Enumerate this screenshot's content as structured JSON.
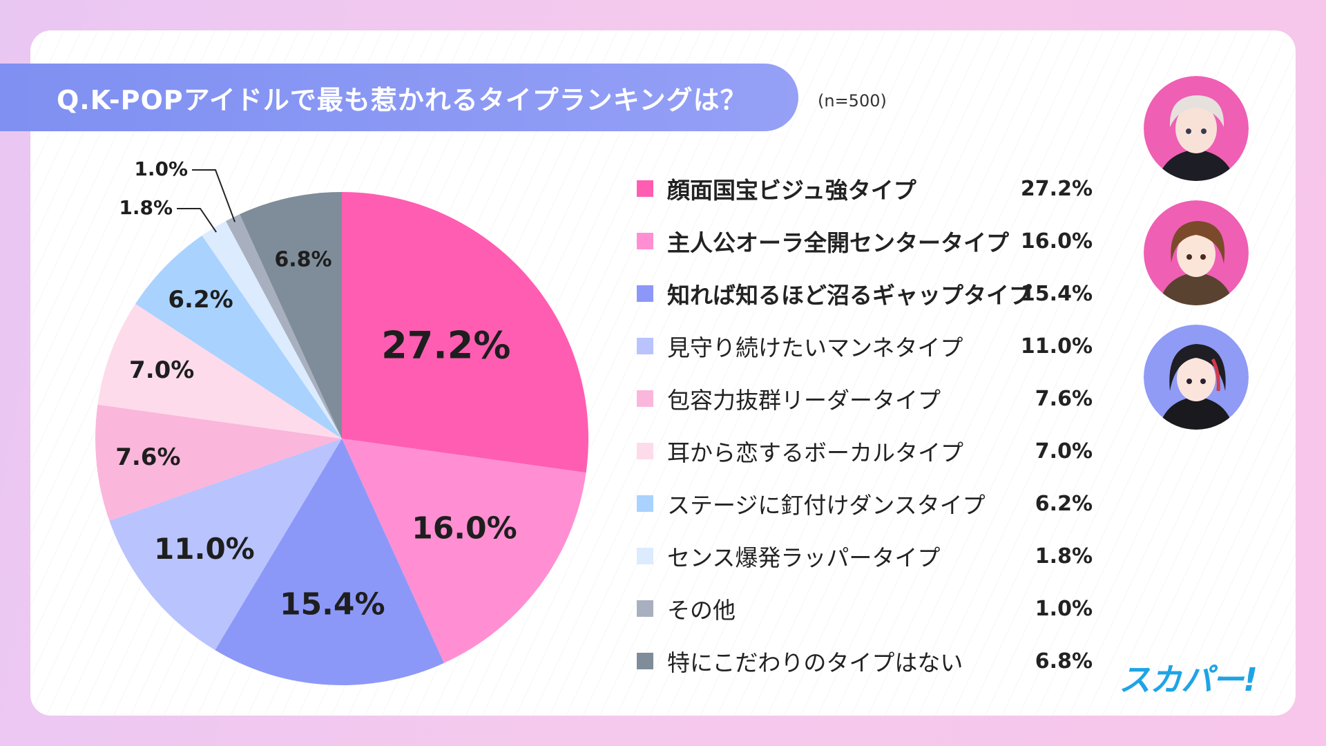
{
  "title": "Q.K-POPアイドルで最も惹かれるタイプランキングは？",
  "sample_size": "(n=500)",
  "logo_text": "スカパー!",
  "avatars": [
    {
      "name": "silver-haired-idol-avatar",
      "bg": "#ef5fb4"
    },
    {
      "name": "brown-haired-idol-avatar",
      "bg": "#ef5fb4"
    },
    {
      "name": "dark-haired-idol-avatar",
      "bg": "#8f9bf5"
    }
  ],
  "chart_data": {
    "type": "pie",
    "start": "12 o'clock, clockwise",
    "slices": [
      {
        "label": "顔面国宝ビジュ強タイプ",
        "value": 27.2,
        "display": "27.2%",
        "color": "#ff5db2",
        "bold": true
      },
      {
        "label": "主人公オーラ全開センタータイプ",
        "value": 16.0,
        "display": "16.0%",
        "color": "#ff8fd2",
        "bold": true
      },
      {
        "label": "知れば知るほど沼るギャップタイプ",
        "value": 15.4,
        "display": "15.4%",
        "color": "#8c98f8",
        "bold": true
      },
      {
        "label": "見守り続けたいマンネタイプ",
        "value": 11.0,
        "display": "11.0%",
        "color": "#b9c3fd",
        "bold": false
      },
      {
        "label": "包容力抜群リーダータイプ",
        "value": 7.6,
        "display": "7.6%",
        "color": "#fbb6db",
        "bold": false
      },
      {
        "label": "耳から恋するボーカルタイプ",
        "value": 7.0,
        "display": "7.0%",
        "color": "#fddbeb",
        "bold": false
      },
      {
        "label": "ステージに釘付けダンスタイプ",
        "value": 6.2,
        "display": "6.2%",
        "color": "#a9d2fe",
        "bold": false
      },
      {
        "label": "センス爆発ラッパータイプ",
        "value": 1.8,
        "display": "1.8%",
        "color": "#dcebfe",
        "bold": false
      },
      {
        "label": "その他",
        "value": 1.0,
        "display": "1.0%",
        "color": "#a8b0bf",
        "bold": false
      },
      {
        "label": "特にこだわりのタイプはない",
        "value": 6.8,
        "display": "6.8%",
        "color": "#7f8c99",
        "bold": false
      }
    ]
  }
}
